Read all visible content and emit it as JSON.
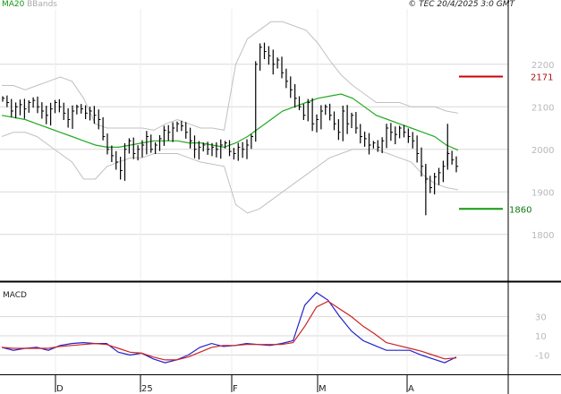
{
  "header": {
    "legend_ma": "MA20",
    "legend_bb": "BBands",
    "source": "© TEC 20/4/2025 3:0 GMT"
  },
  "macd_label": "MACD",
  "colors": {
    "background": "#ffffff",
    "grid": "#d8d8d8",
    "frame": "#000000",
    "price_bars": "#000000",
    "ma20": "#22aa22",
    "bbands": "#c0c0c0",
    "macd_line": "#2222cc",
    "signal_line": "#cc2222",
    "resistance": "#cc0000",
    "support": "#119911",
    "resistance_text": "#aa1111",
    "support_text": "#117711",
    "legend_ma_color": "#119911",
    "legend_bb_color": "#aaaaaa"
  },
  "chart_data": [
    {
      "type": "ohlc",
      "name": "price",
      "y_ticks": [
        1800,
        1900,
        2000,
        2100,
        2200
      ],
      "ylim": [
        1690,
        2330
      ],
      "x_date_labels": [
        "D",
        "25",
        "F",
        "M",
        "A"
      ],
      "levels": [
        {
          "name": "resistance",
          "value": 2171,
          "label": "2171"
        },
        {
          "name": "support",
          "value": 1860,
          "label": "1860"
        }
      ],
      "close": [
        2120,
        2110,
        2090,
        2100,
        2105,
        2095,
        2110,
        2115,
        2100,
        2090,
        2080,
        2095,
        2110,
        2100,
        2085,
        2070,
        2090,
        2100,
        2095,
        2085,
        2090,
        2080,
        2070,
        2030,
        2000,
        1985,
        1970,
        1950,
        2000,
        2020,
        1990,
        2000,
        2010,
        2030,
        2000,
        2010,
        2025,
        2045,
        2040,
        2050,
        2060,
        2055,
        2040,
        2020,
        2000,
        2005,
        2010,
        2000,
        2005,
        2000,
        2010,
        2015,
        1995,
        1990,
        2005,
        2000,
        2010,
        2030,
        2200,
        2240,
        2230,
        2220,
        2200,
        2210,
        2180,
        2160,
        2140,
        2120,
        2100,
        2080,
        2110,
        2060,
        2070,
        2090,
        2100,
        2080,
        2060,
        2040,
        2090,
        2060,
        2080,
        2050,
        2030,
        2025,
        2010,
        2015,
        2005,
        2020,
        2050,
        2040,
        2035,
        2050,
        2040,
        2030,
        2020,
        1990,
        1960,
        1930,
        1910,
        1935,
        1945,
        1960,
        1990,
        1975,
        1960
      ],
      "ma20": [
        2080,
        2075,
        2070,
        2060,
        2050,
        2040,
        2030,
        2020,
        2010,
        2005,
        2005,
        2010,
        2015,
        2020,
        2020,
        2020,
        2015,
        2015,
        2010,
        2005,
        2015,
        2030,
        2050,
        2070,
        2090,
        2100,
        2110,
        2120,
        2125,
        2130,
        2120,
        2100,
        2080,
        2070,
        2060,
        2050,
        2040,
        2030,
        2010,
        1998
      ],
      "bb_upper": [
        2150,
        2150,
        2140,
        2150,
        2160,
        2170,
        2160,
        2120,
        2060,
        2050,
        2050,
        2050,
        2050,
        2045,
        2060,
        2070,
        2060,
        2050,
        2050,
        2045,
        2200,
        2260,
        2280,
        2300,
        2300,
        2290,
        2280,
        2250,
        2210,
        2175,
        2150,
        2130,
        2110,
        2110,
        2110,
        2100,
        2100,
        2100,
        2090,
        2085
      ],
      "bb_lower": [
        2030,
        2040,
        2040,
        2030,
        2010,
        1990,
        1970,
        1930,
        1930,
        1960,
        1970,
        1980,
        1980,
        1990,
        1990,
        1990,
        1980,
        1970,
        1965,
        1960,
        1870,
        1850,
        1860,
        1880,
        1900,
        1920,
        1940,
        1960,
        1980,
        1990,
        2000,
        2000,
        2000,
        1990,
        1980,
        1970,
        1940,
        1920,
        1910,
        1905
      ]
    },
    {
      "type": "line",
      "name": "macd",
      "y_ticks": [
        -10,
        10,
        30
      ],
      "ylim": [
        -30,
        65
      ],
      "series": [
        {
          "key": "macd",
          "values": [
            -2,
            -5,
            -3,
            -2,
            -5,
            0,
            2,
            3,
            2,
            2,
            -7,
            -10,
            -8,
            -14,
            -18,
            -15,
            -10,
            -2,
            2,
            -1,
            0,
            2,
            1,
            0,
            2,
            5,
            42,
            55,
            47,
            30,
            15,
            5,
            0,
            -5,
            -5,
            -5,
            -10,
            -14,
            -18,
            -12
          ]
        },
        {
          "key": "signal",
          "values": [
            -2,
            -3,
            -3,
            -3,
            -3,
            -1,
            0,
            1,
            2,
            1,
            -3,
            -7,
            -8,
            -12,
            -15,
            -15,
            -12,
            -7,
            -2,
            0,
            0,
            1,
            1,
            1,
            1,
            3,
            20,
            40,
            46,
            38,
            30,
            20,
            12,
            3,
            0,
            -3,
            -6,
            -10,
            -14,
            -13
          ]
        }
      ]
    }
  ]
}
